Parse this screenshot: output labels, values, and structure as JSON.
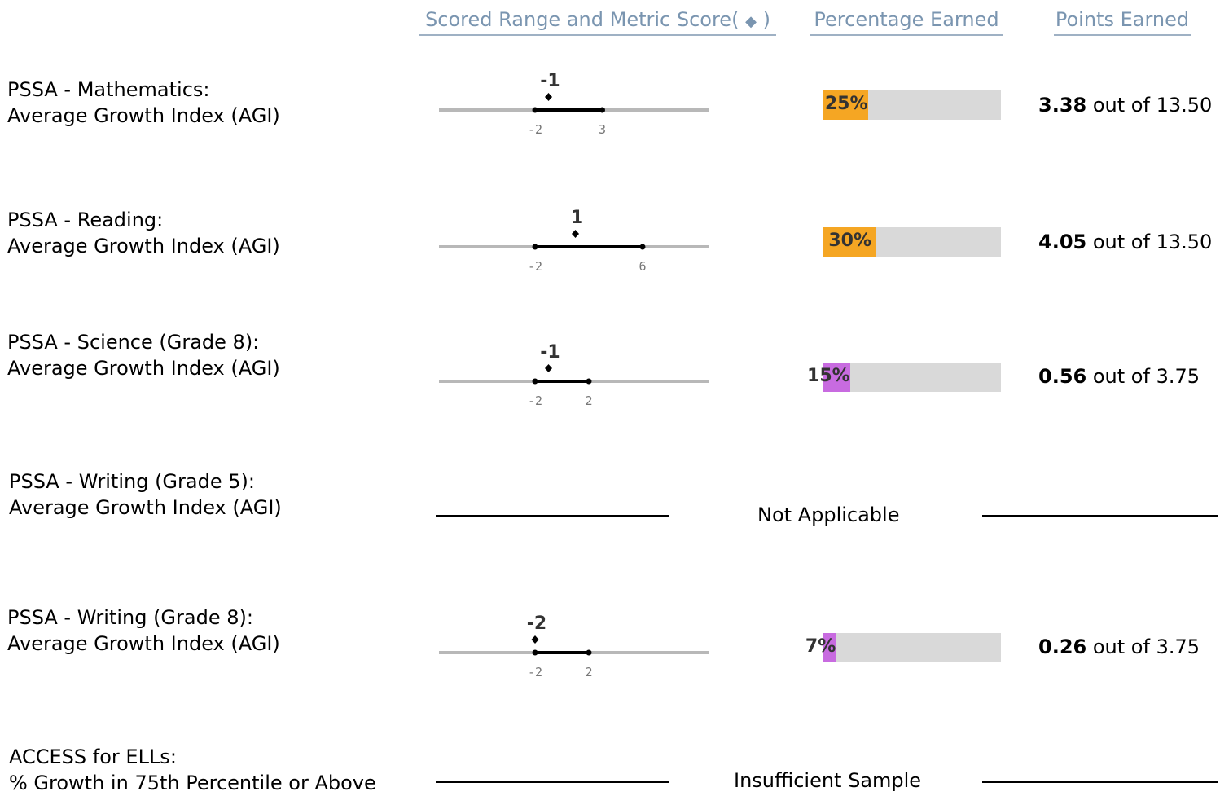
{
  "headers": {
    "scored_range": "Scored Range and Metric Score",
    "scored_range_paren_open": "(",
    "diamond": "◆",
    "scored_range_paren_close": ")",
    "percentage": "Percentage Earned",
    "points": "Points Earned"
  },
  "colors": {
    "orange": "#f5a623",
    "purple": "#c86be0",
    "bar_bg": "#d9d9d9"
  },
  "rows": [
    {
      "line1": "PSSA - Mathematics:",
      "line2": "Average Growth Index (AGI)",
      "score": "-1",
      "range_min": "-2",
      "range_max": "3",
      "score_val": -1,
      "min_val": -2,
      "max_val": 3,
      "percent": "25%",
      "percent_val": 25,
      "color": "orange",
      "points": "3.38",
      "out_of_label": "out of",
      "out_of": "13.50"
    },
    {
      "line1": "PSSA - Reading:",
      "line2": "Average Growth Index (AGI)",
      "score": "1",
      "range_min": "-2",
      "range_max": "6",
      "score_val": 1,
      "min_val": -2,
      "max_val": 6,
      "percent": "30%",
      "percent_val": 30,
      "color": "orange",
      "points": "4.05",
      "out_of_label": "out of",
      "out_of": "13.50"
    },
    {
      "line1": "PSSA - Science (Grade 8):",
      "line2": "Average Growth Index (AGI)",
      "score": "-1",
      "range_min": "-2",
      "range_max": "2",
      "score_val": -1,
      "min_val": -2,
      "max_val": 2,
      "percent": "15%",
      "percent_val": 15,
      "color": "purple",
      "points": "0.56",
      "out_of_label": "out of",
      "out_of": "3.75"
    },
    {
      "line1": "PSSA - Writing (Grade 5):",
      "line2": "Average Growth Index (AGI)",
      "status": "Not Applicable"
    },
    {
      "line1": "PSSA - Writing (Grade 8):",
      "line2": "Average Growth Index (AGI)",
      "score": "-2",
      "range_min": "-2",
      "range_max": "2",
      "score_val": -2,
      "min_val": -2,
      "max_val": 2,
      "percent": "7%",
      "percent_val": 7,
      "color": "purple",
      "points": "0.26",
      "out_of_label": "out of",
      "out_of": "3.75"
    },
    {
      "line1": "ACCESS for ELLs:",
      "line2": "% Growth in 75th Percentile or Above",
      "status": "Insufficient Sample"
    }
  ]
}
